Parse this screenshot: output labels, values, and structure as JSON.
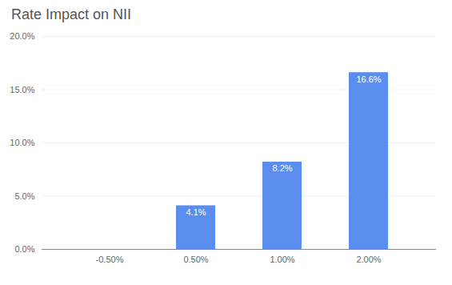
{
  "chart_data": {
    "type": "bar",
    "title": "Rate Impact on NII",
    "categories": [
      "-0.50%",
      "0.50%",
      "1.00%",
      "2.00%"
    ],
    "values": [
      0.0,
      0.041,
      0.082,
      0.166
    ],
    "value_labels": [
      null,
      "4.1%",
      "8.2%",
      "16.6%"
    ],
    "data_labels": true,
    "color": "#5B8DEE",
    "ylim": [
      0,
      0.2
    ],
    "yticks": [
      {
        "value": 0.0,
        "label": "0.0%"
      },
      {
        "value": 0.05,
        "label": "5.0%"
      },
      {
        "value": 0.1,
        "label": "10.0%"
      },
      {
        "value": 0.15,
        "label": "15.0%"
      },
      {
        "value": 0.2,
        "label": "20.0%"
      }
    ],
    "grid": true
  }
}
